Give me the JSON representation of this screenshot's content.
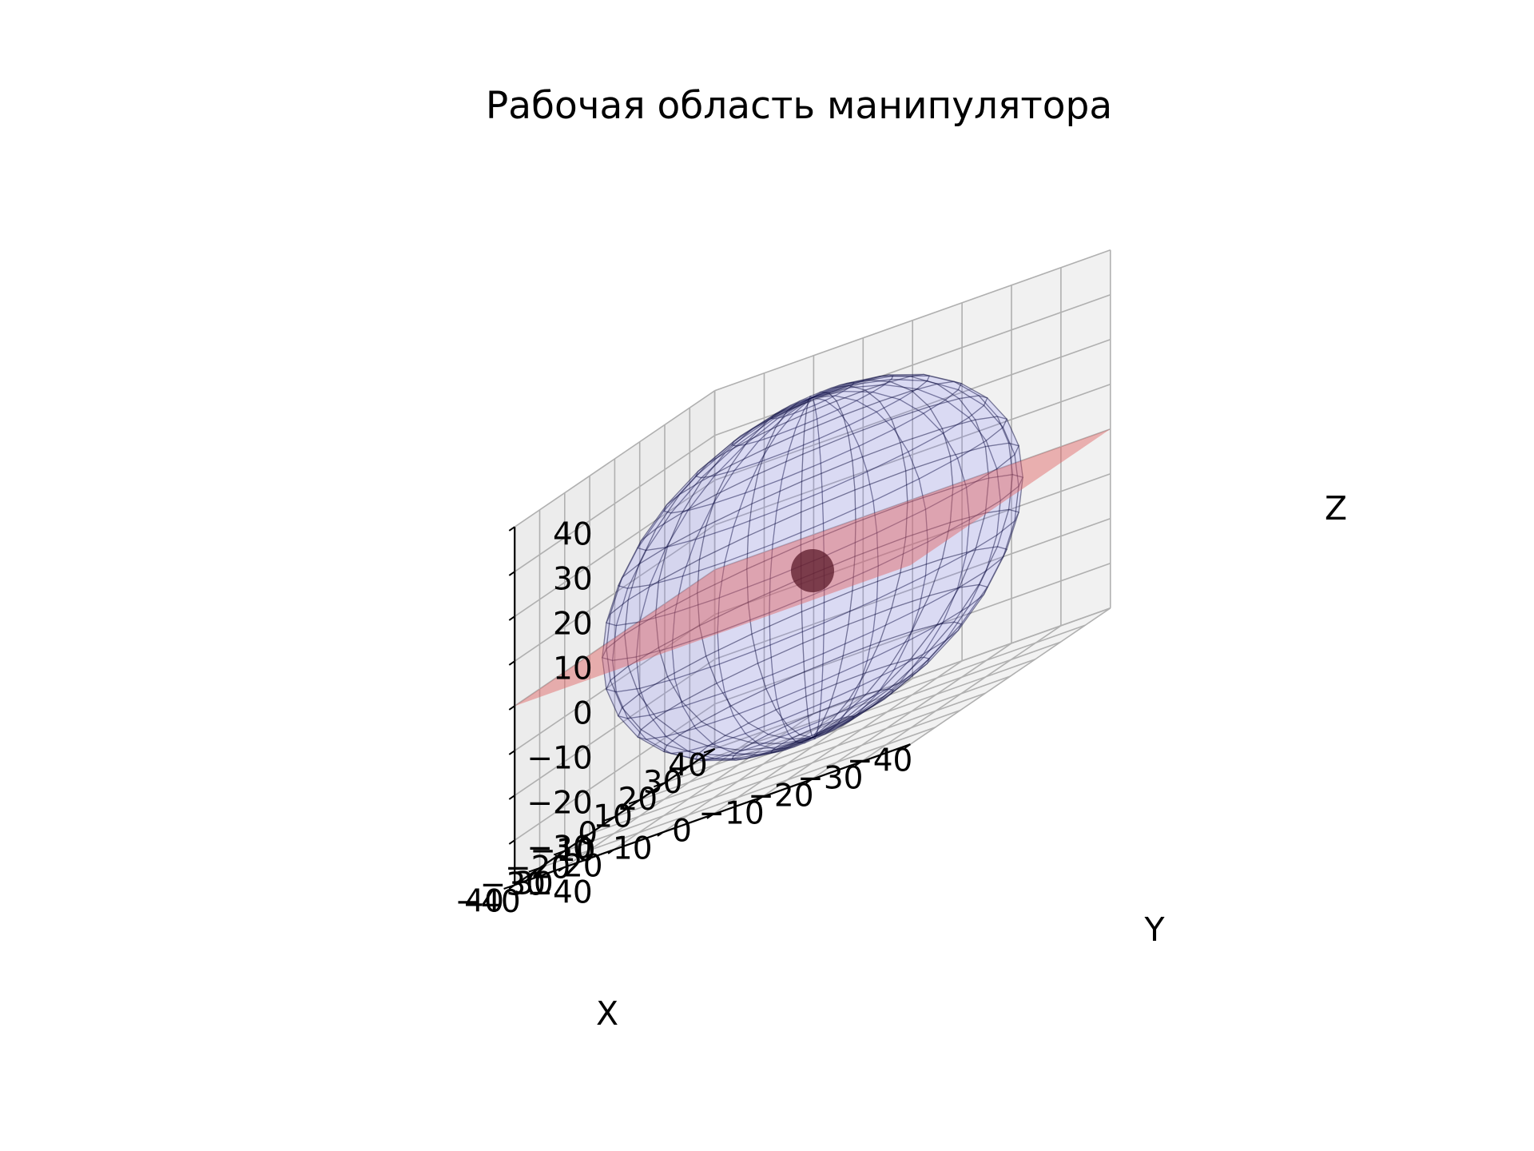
{
  "chart_data": {
    "type": "3d-surface",
    "title": "Рабочая область манипулятора",
    "xlabel": "X",
    "ylabel": "Y",
    "zlabel": "Z",
    "xlim": [
      -40,
      40
    ],
    "ylim": [
      -40,
      40
    ],
    "zlim": [
      -40,
      40
    ],
    "x_ticks": [
      "−40",
      "−30",
      "−20",
      "−10",
      "0",
      "10",
      "20",
      "30",
      "40"
    ],
    "y_ticks": [
      "−40",
      "−30",
      "−20",
      "−10",
      "0",
      "10",
      "20",
      "30",
      "40"
    ],
    "z_ticks": [
      "−40",
      "−30",
      "−20",
      "−10",
      "0",
      "10",
      "20",
      "30",
      "40"
    ],
    "grid": true,
    "series": [
      {
        "kind": "sphere-mesh",
        "center": [
          0,
          0,
          0
        ],
        "radius": 38,
        "color": "#6b6bff",
        "edge_color": "#000033",
        "opacity": 0.3
      },
      {
        "kind": "plane",
        "z": 0,
        "x_range": [
          -40,
          40
        ],
        "y_range": [
          -40,
          40
        ],
        "color": "#e06060",
        "opacity": 0.45
      },
      {
        "kind": "central-marker",
        "center": [
          0,
          0,
          0
        ],
        "color": "#5a1a2a"
      }
    ]
  }
}
